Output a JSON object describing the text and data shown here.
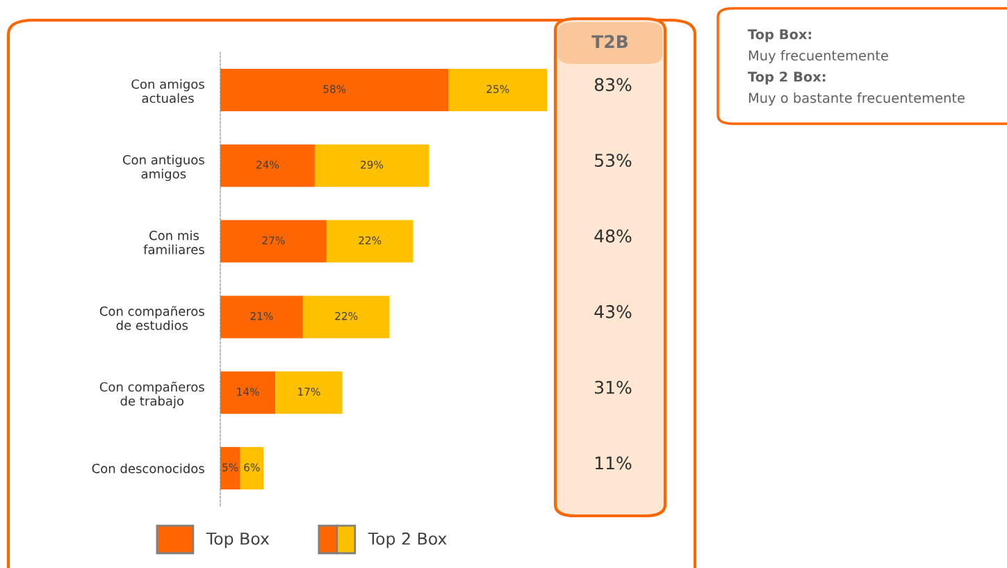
{
  "chart_data": {
    "type": "bar",
    "orientation": "horizontal",
    "stacked": true,
    "categories": [
      "Con amigos\nactuales",
      "Con antiguos\namigos",
      "Con mis\nfamiliares",
      "Con compañeros\nde estudios",
      "Con compañeros\nde trabajo",
      "Con desconocidos"
    ],
    "series": [
      {
        "name": "Top Box",
        "color": "#ff6600",
        "values": [
          58,
          24,
          27,
          21,
          14,
          5
        ],
        "value_labels": [
          "58%",
          "24%",
          "27%",
          "21%",
          "14%",
          "5%"
        ]
      },
      {
        "name": "Top 2 Box",
        "color": "#ffc000",
        "values": [
          25,
          29,
          22,
          22,
          17,
          6
        ],
        "value_labels": [
          "25%",
          "29%",
          "22%",
          "22%",
          "17%",
          "6%"
        ]
      }
    ],
    "annotations": [
      "T2B",
      "83%",
      "53%",
      "48%",
      "43%",
      "31%",
      "11%",
      "Top Box:",
      "Muy frecuentemente",
      "Top 2 Box:",
      "Muy o bastante frecuentemente"
    ],
    "legend": "bottom",
    "grid": false
  }
}
